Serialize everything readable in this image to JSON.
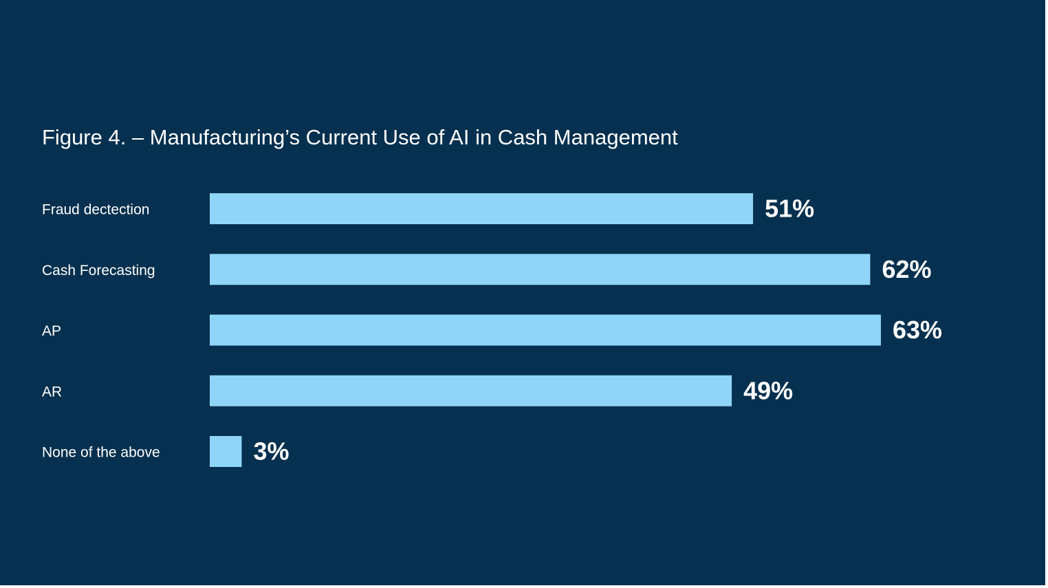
{
  "colors": {
    "background": "#06304f",
    "bar": "#8fd5f8",
    "text": "#ffffff"
  },
  "chart_data": {
    "type": "bar",
    "orientation": "horizontal",
    "title": "Figure 4. – Manufacturing’s Current Use of AI in Cash Management",
    "categories": [
      "Fraud dectection",
      "Cash Forecasting",
      "AP",
      "AR",
      "None of the above"
    ],
    "values": [
      51,
      62,
      63,
      49,
      3
    ],
    "value_labels": [
      "51%",
      "62%",
      "63%",
      "49%",
      "3%"
    ],
    "unit": "%",
    "xlim": [
      0,
      63
    ],
    "grid": false,
    "legend": "none"
  }
}
